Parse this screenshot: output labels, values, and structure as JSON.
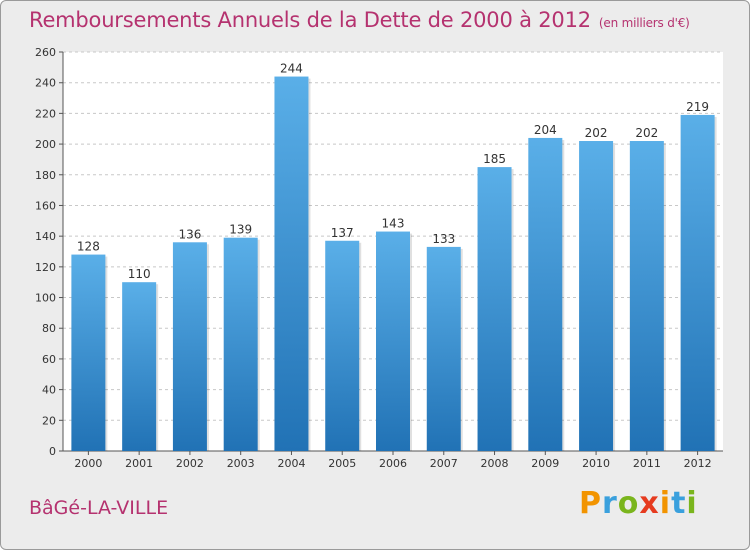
{
  "title": "Remboursements Annuels de la Dette de 2000 à 2012",
  "unit": "(en milliers d'€)",
  "town": "BâGé-LA-VILLE",
  "logo": {
    "letters": [
      "P",
      "r",
      "o",
      "x",
      "i",
      "t",
      "i"
    ],
    "colors": [
      "#f29400",
      "#3aa0dd",
      "#7ab51d",
      "#e63b1f",
      "#f29400",
      "#3aa0dd",
      "#7ab51d"
    ]
  },
  "colors": {
    "bar_top": "#5aafe8",
    "bar_bottom": "#2172b5",
    "title": "#b5326f",
    "background": "#ececec"
  },
  "chart_data": {
    "type": "bar",
    "title": "Remboursements Annuels de la Dette de 2000 à 2012",
    "xlabel": "",
    "ylabel": "",
    "categories": [
      "2000",
      "2001",
      "2002",
      "2003",
      "2004",
      "2005",
      "2006",
      "2007",
      "2008",
      "2009",
      "2010",
      "2011",
      "2012"
    ],
    "values": [
      128,
      110,
      136,
      139,
      244,
      137,
      143,
      133,
      185,
      204,
      202,
      202,
      219
    ],
    "ylim": [
      0,
      260
    ],
    "yticks": [
      0,
      20,
      40,
      60,
      80,
      100,
      120,
      140,
      160,
      180,
      200,
      220,
      240,
      260
    ],
    "grid": true
  }
}
